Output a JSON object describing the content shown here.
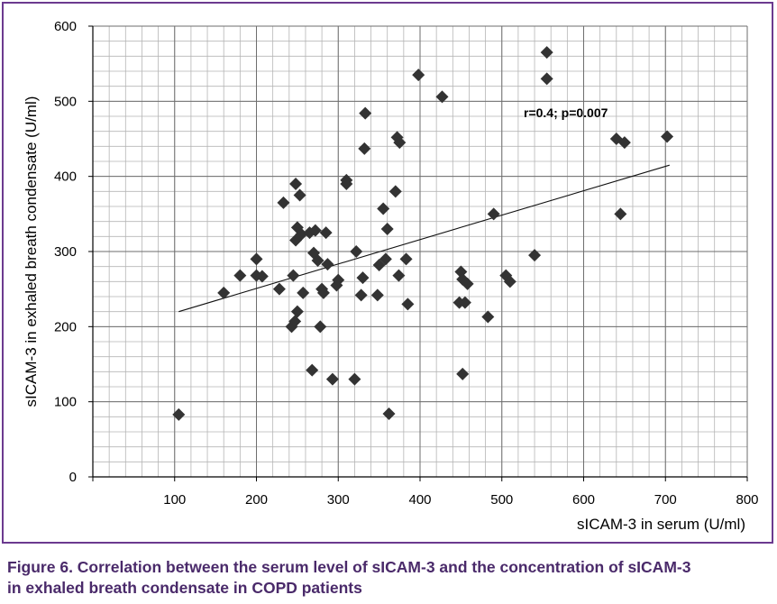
{
  "chart_data": {
    "type": "scatter",
    "title": "",
    "xlabel": "sICAM-3 in serum (U/ml)",
    "ylabel": "sICAM-3 in exhaled breath condensate (U/ml)",
    "xlim": [
      0,
      800
    ],
    "ylim": [
      0,
      600
    ],
    "x_ticks": [
      100,
      200,
      300,
      400,
      500,
      600,
      700,
      800
    ],
    "y_ticks": [
      0,
      100,
      200,
      300,
      400,
      500,
      600
    ],
    "grid": true,
    "annotation": "r=0.4; p=0.007",
    "trendline": {
      "x": [
        105,
        705
      ],
      "y": [
        220,
        415
      ]
    },
    "points": [
      [
        105,
        83
      ],
      [
        160,
        245
      ],
      [
        180,
        268
      ],
      [
        200,
        290
      ],
      [
        200,
        268
      ],
      [
        207,
        267
      ],
      [
        228,
        250
      ],
      [
        233,
        365
      ],
      [
        243,
        200
      ],
      [
        245,
        268
      ],
      [
        247,
        207
      ],
      [
        248,
        390
      ],
      [
        248,
        315
      ],
      [
        250,
        332
      ],
      [
        250,
        220
      ],
      [
        253,
        375
      ],
      [
        255,
        323
      ],
      [
        257,
        245
      ],
      [
        265,
        325
      ],
      [
        268,
        142
      ],
      [
        270,
        298
      ],
      [
        272,
        328
      ],
      [
        275,
        288
      ],
      [
        278,
        200
      ],
      [
        280,
        250
      ],
      [
        282,
        245
      ],
      [
        285,
        325
      ],
      [
        287,
        283
      ],
      [
        293,
        130
      ],
      [
        298,
        255
      ],
      [
        300,
        262
      ],
      [
        310,
        395
      ],
      [
        310,
        390
      ],
      [
        320,
        130
      ],
      [
        322,
        300
      ],
      [
        328,
        242
      ],
      [
        330,
        265
      ],
      [
        332,
        437
      ],
      [
        333,
        484
      ],
      [
        348,
        242
      ],
      [
        350,
        282
      ],
      [
        355,
        357
      ],
      [
        358,
        290
      ],
      [
        360,
        330
      ],
      [
        362,
        84
      ],
      [
        370,
        380
      ],
      [
        372,
        452
      ],
      [
        374,
        268
      ],
      [
        375,
        445
      ],
      [
        383,
        290
      ],
      [
        385,
        230
      ],
      [
        398,
        535
      ],
      [
        427,
        506
      ],
      [
        448,
        232
      ],
      [
        450,
        273
      ],
      [
        452,
        263
      ],
      [
        452,
        137
      ],
      [
        455,
        232
      ],
      [
        458,
        257
      ],
      [
        483,
        213
      ],
      [
        490,
        350
      ],
      [
        505,
        268
      ],
      [
        510,
        260
      ],
      [
        540,
        295
      ],
      [
        555,
        565
      ],
      [
        555,
        530
      ],
      [
        640,
        450
      ],
      [
        645,
        350
      ],
      [
        650,
        445
      ],
      [
        702,
        453
      ]
    ]
  },
  "caption": {
    "line1": "Figure 6. Correlation between the serum level of sICAM-3 and the concentration of sICAM-3",
    "line2": "in exhaled breath condensate in COPD patients"
  },
  "colors": {
    "frame": "#6b3a8f",
    "caption": "#4a2a6a",
    "marker": "#333333"
  }
}
